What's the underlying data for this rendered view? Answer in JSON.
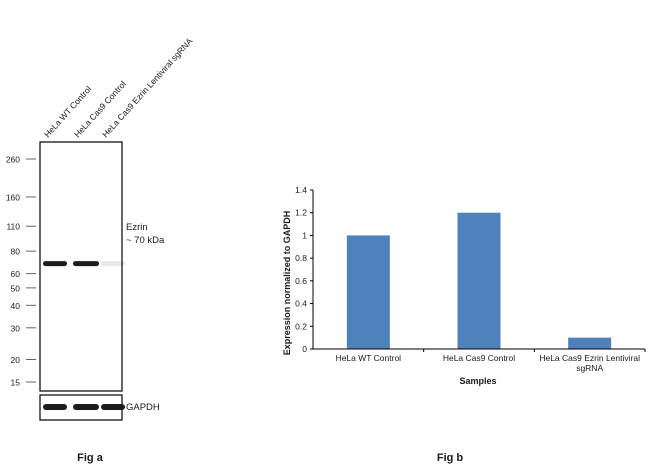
{
  "figures": {
    "fig_a_caption": "Fig a",
    "fig_b_caption": "Fig b"
  },
  "blot": {
    "lane_labels": [
      "HeLa WT Control",
      "HeLa Cas9 Control",
      "HeLa Cas9 Ezrin Lentiviral sgRNA"
    ],
    "markers": [
      "260",
      "160",
      "110",
      "80",
      "60",
      "50",
      "40",
      "30",
      "20",
      "15"
    ],
    "band_label_line1": "Ezrin",
    "band_label_line2": "~ 70 kDa",
    "loading_control_label": "GAPDH",
    "ezrin_band_intensity": [
      1.0,
      1.0,
      0.1
    ],
    "gapdh_band_intensity": [
      1.0,
      1.0,
      1.0
    ],
    "colors": {
      "background": "#ffffff",
      "band": "#1c1c1c",
      "border": "#000000"
    }
  },
  "chart_data": {
    "type": "bar",
    "categories": [
      "HeLa WT Control",
      "HeLa Cas9 Control",
      "HeLa Cas9 Ezrin Lentiviral sgRNA"
    ],
    "category_label_lines": [
      [
        "HeLa WT Control"
      ],
      [
        "HeLa Cas9 Control"
      ],
      [
        "HeLa Cas9 Ezrin Lentiviral",
        "sgRNA"
      ]
    ],
    "values": [
      1.0,
      1.2,
      0.1
    ],
    "xlabel": "Samples",
    "ylabel": "Expression  normalized to GAPDH",
    "ylim": [
      0,
      1.4
    ],
    "yticks": [
      "0",
      "0.2",
      "0.4",
      "0.6",
      "0.8",
      "1",
      "1.2",
      "1.4"
    ],
    "grid": false,
    "legend": "none",
    "bar_color": "#4f81bd"
  }
}
